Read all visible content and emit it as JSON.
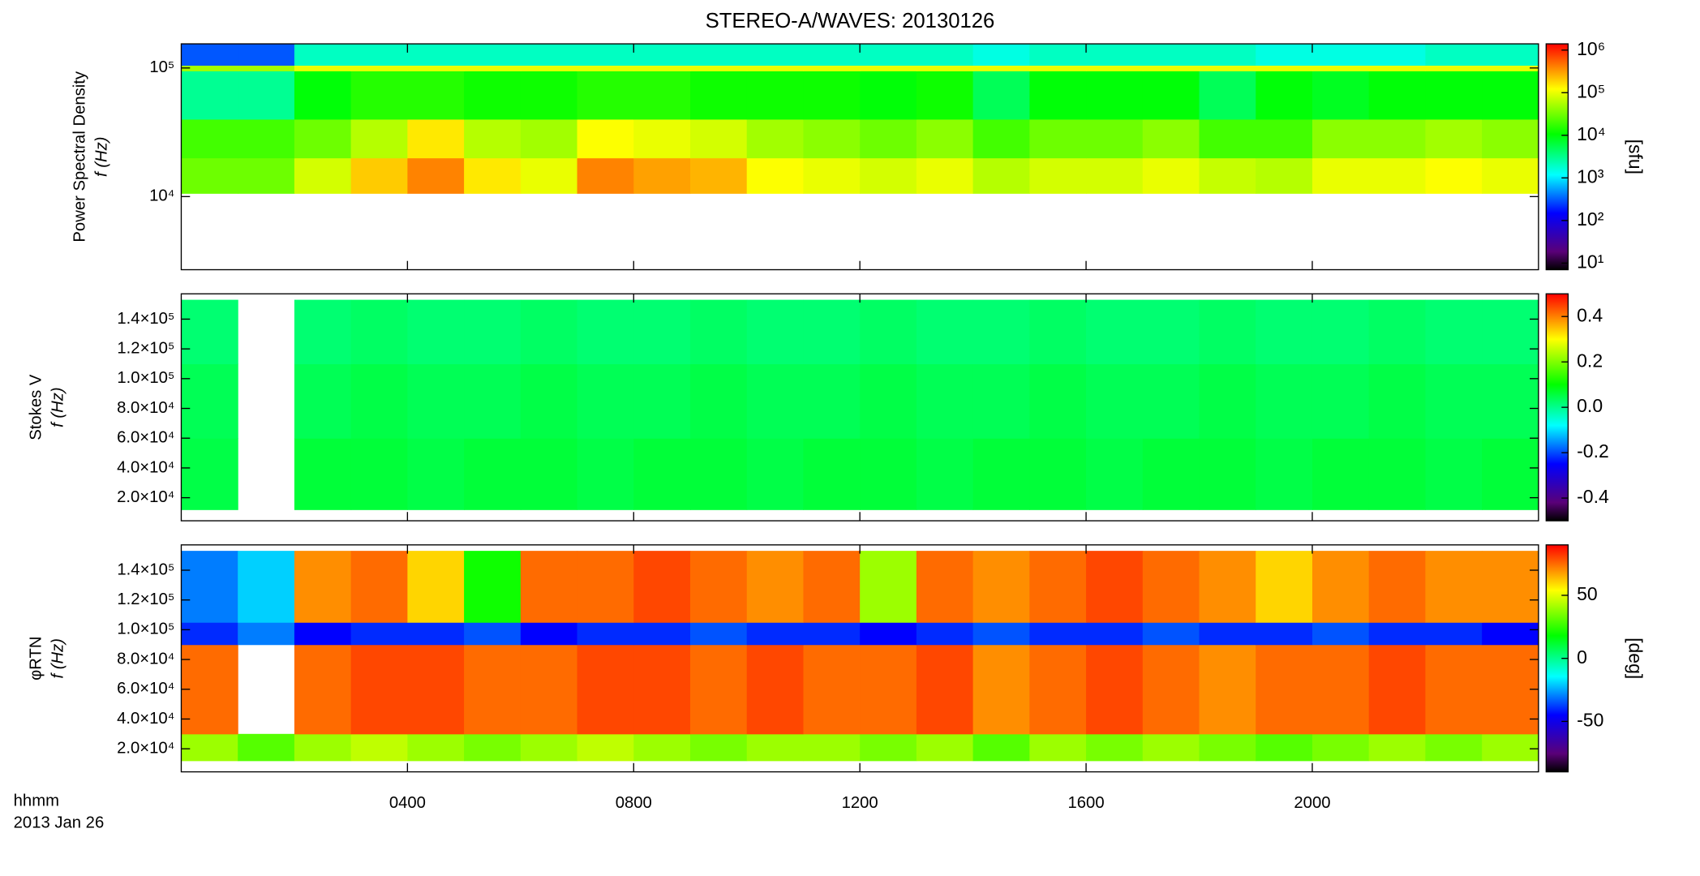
{
  "figure": {
    "title": "STEREO-A/WAVES: 20130126",
    "x_axis_labels": [
      "hhmm",
      "2013 Jan 26"
    ]
  },
  "chart_data": [
    {
      "type": "heatmap",
      "ylabel": [
        "Power Spectral Density",
        "f (Hz)"
      ],
      "ylog": true,
      "clog": true,
      "xlim": [
        0,
        24
      ],
      "ylim": [
        2700,
        154000
      ],
      "yticks": [
        {
          "value": 10000,
          "label": "10⁴"
        },
        {
          "value": 100000,
          "label": "10⁵"
        }
      ],
      "x_bins": [
        0,
        1,
        2,
        3,
        4,
        5,
        6,
        7,
        8,
        9,
        10,
        11,
        12,
        13,
        14,
        15,
        16,
        17,
        18,
        19,
        20,
        21,
        22,
        23,
        24
      ],
      "y_bins": [
        10600,
        20000,
        40000,
        95000,
        105000,
        154000
      ],
      "values": [
        [
          30000,
          30000,
          80000,
          200000,
          400000,
          150000,
          100000,
          400000,
          300000,
          250000,
          120000,
          100000,
          80000,
          100000,
          60000,
          80000,
          80000,
          100000,
          70000,
          60000,
          100000,
          100000,
          120000,
          100000
        ],
        [
          20000,
          20000,
          30000,
          60000,
          150000,
          60000,
          50000,
          120000,
          100000,
          80000,
          50000,
          40000,
          30000,
          40000,
          20000,
          30000,
          30000,
          40000,
          20000,
          20000,
          40000,
          40000,
          50000,
          40000
        ],
        [
          3000,
          3000,
          10000,
          15000,
          15000,
          12000,
          12000,
          15000,
          15000,
          12000,
          12000,
          12000,
          10000,
          12000,
          5000,
          10000,
          10000,
          10000,
          5000,
          10000,
          8000,
          10000,
          10000,
          10000
        ],
        [
          50000,
          50000,
          100000,
          100000,
          100000,
          100000,
          100000,
          100000,
          100000,
          100000,
          100000,
          100000,
          100000,
          100000,
          100000,
          100000,
          100000,
          100000,
          100000,
          100000,
          100000,
          100000,
          100000,
          100000
        ],
        [
          300,
          300,
          2000,
          2000,
          2000,
          2000,
          2000,
          2000,
          2000,
          2000,
          2000,
          2000,
          2000,
          2000,
          1500,
          2000,
          2000,
          2000,
          2000,
          1500,
          1500,
          1500,
          2000,
          2000
        ]
      ],
      "colormap": "rainbow",
      "clim": [
        7,
        1400000
      ],
      "cticks": [
        {
          "value": 10,
          "label": "10¹"
        },
        {
          "value": 100,
          "label": "10²"
        },
        {
          "value": 1000,
          "label": "10³"
        },
        {
          "value": 10000,
          "label": "10⁴"
        },
        {
          "value": 100000,
          "label": "10⁵"
        },
        {
          "value": 1000000,
          "label": "10⁶"
        }
      ],
      "clabel": "[sfu]"
    },
    {
      "type": "heatmap",
      "ylabel": [
        "Stokes V",
        "f (Hz)"
      ],
      "ylog": false,
      "clog": false,
      "xlim": [
        0,
        24
      ],
      "ylim": [
        4500,
        157000
      ],
      "yticks": [
        {
          "value": 20000,
          "label": "2.0×10⁴"
        },
        {
          "value": 40000,
          "label": "4.0×10⁴"
        },
        {
          "value": 60000,
          "label": "6.0×10⁴"
        },
        {
          "value": 80000,
          "label": "8.0×10⁴"
        },
        {
          "value": 100000,
          "label": "1.0×10⁵"
        },
        {
          "value": 120000,
          "label": "1.2×10⁵"
        },
        {
          "value": 140000,
          "label": "1.4×10⁵"
        }
      ],
      "x_bins": [
        0,
        1,
        2,
        3,
        4,
        5,
        6,
        7,
        8,
        9,
        10,
        11,
        12,
        13,
        14,
        15,
        16,
        17,
        18,
        19,
        20,
        21,
        22,
        23,
        24
      ],
      "y_bins": [
        12000,
        60000,
        110000,
        153000
      ],
      "values": [
        [
          0.05,
          null,
          0.06,
          0.06,
          0.05,
          0.06,
          0.06,
          0.05,
          0.06,
          0.06,
          0.05,
          0.06,
          0.06,
          0.05,
          0.06,
          0.06,
          0.05,
          0.06,
          0.06,
          0.05,
          0.06,
          0.06,
          0.05,
          0.06
        ],
        [
          0.04,
          null,
          0.04,
          0.05,
          0.04,
          0.04,
          0.05,
          0.04,
          0.04,
          0.05,
          0.04,
          0.04,
          0.05,
          0.04,
          0.04,
          0.05,
          0.04,
          0.04,
          0.05,
          0.04,
          0.04,
          0.05,
          0.04,
          0.04
        ],
        [
          0.02,
          null,
          0.02,
          0.03,
          0.02,
          0.02,
          0.03,
          0.02,
          0.02,
          0.03,
          0.02,
          0.02,
          0.03,
          0.02,
          0.02,
          0.03,
          0.02,
          0.02,
          0.03,
          0.02,
          0.02,
          0.03,
          0.02,
          0.02
        ]
      ],
      "colormap": "rainbow",
      "clim": [
        -0.5,
        0.5
      ],
      "cticks": [
        -0.4,
        -0.2,
        {
          "value": 0,
          "label": "0.0"
        },
        0.2,
        0.4
      ]
    },
    {
      "type": "heatmap",
      "ylabel": [
        "φRTN",
        "f (Hz)"
      ],
      "ylog": false,
      "clog": false,
      "xlim": [
        0,
        24
      ],
      "ylim": [
        4500,
        157000
      ],
      "xticks": [
        {
          "value": 4,
          "label": "0400"
        },
        {
          "value": 8,
          "label": "0800"
        },
        {
          "value": 12,
          "label": "1200"
        },
        {
          "value": 16,
          "label": "1600"
        },
        {
          "value": 20,
          "label": "2000"
        }
      ],
      "yticks": [
        {
          "value": 20000,
          "label": "2.0×10⁴"
        },
        {
          "value": 40000,
          "label": "4.0×10⁴"
        },
        {
          "value": 60000,
          "label": "6.0×10⁴"
        },
        {
          "value": 80000,
          "label": "8.0×10⁴"
        },
        {
          "value": 100000,
          "label": "1.0×10⁵"
        },
        {
          "value": 120000,
          "label": "1.2×10⁵"
        },
        {
          "value": 140000,
          "label": "1.4×10⁵"
        }
      ],
      "x_bins": [
        0,
        1,
        2,
        3,
        4,
        5,
        6,
        7,
        8,
        9,
        10,
        11,
        12,
        13,
        14,
        15,
        16,
        17,
        18,
        19,
        20,
        21,
        22,
        23,
        24
      ],
      "y_bins": [
        12000,
        30000,
        90000,
        105000,
        153000
      ],
      "values": [
        [
          40,
          30,
          40,
          45,
          40,
          35,
          40,
          45,
          40,
          35,
          40,
          40,
          35,
          40,
          30,
          40,
          35,
          40,
          35,
          30,
          35,
          40,
          35,
          40
        ],
        [
          75,
          null,
          75,
          80,
          80,
          75,
          75,
          80,
          80,
          75,
          80,
          75,
          75,
          80,
          70,
          75,
          80,
          75,
          70,
          75,
          75,
          80,
          75,
          75
        ],
        [
          -40,
          -30,
          -45,
          -40,
          -40,
          -35,
          -45,
          -40,
          -40,
          -35,
          -40,
          -40,
          -45,
          -40,
          -35,
          -40,
          -40,
          -35,
          -40,
          -40,
          -35,
          -40,
          -40,
          -45
        ],
        [
          -30,
          -20,
          70,
          75,
          60,
          20,
          75,
          75,
          80,
          75,
          70,
          75,
          40,
          75,
          70,
          75,
          80,
          75,
          70,
          60,
          70,
          75,
          70,
          70
        ]
      ],
      "colormap": "rainbow",
      "clim": [
        -90,
        90
      ],
      "cticks": [
        -50,
        0,
        50
      ],
      "clabel": "[deg]"
    }
  ]
}
